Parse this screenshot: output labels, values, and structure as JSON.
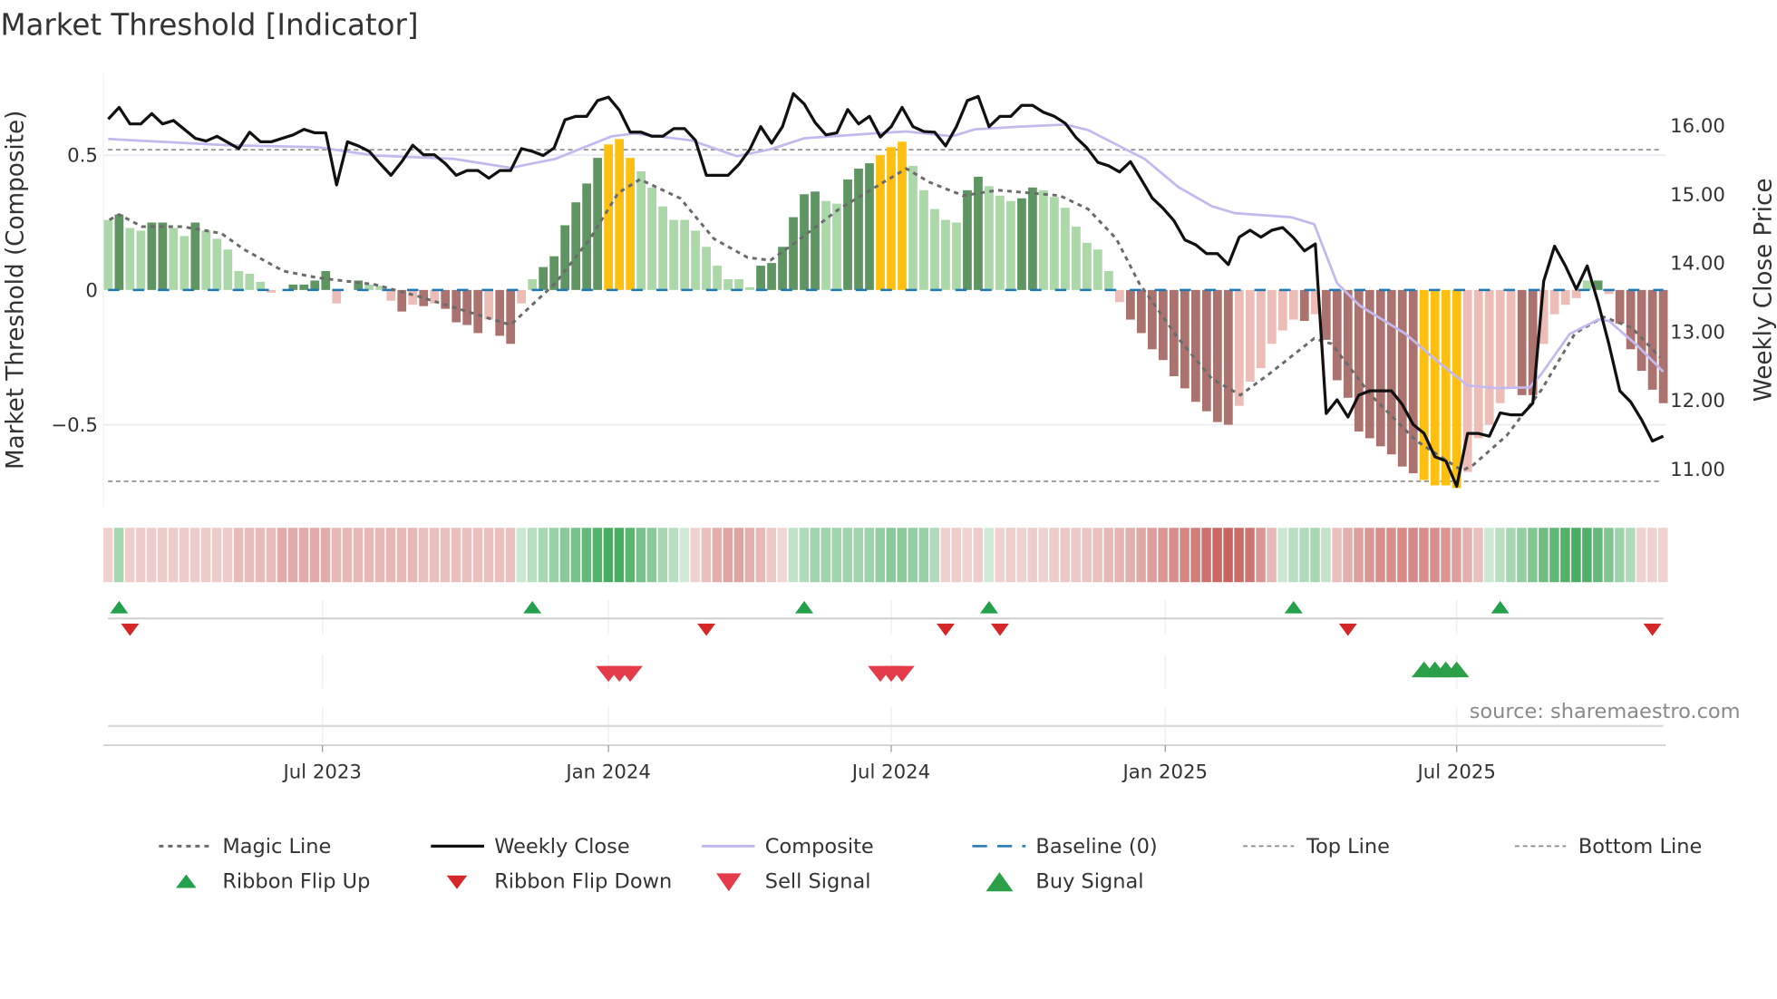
{
  "title": "Market Threshold [Indicator]",
  "source": "source: sharemaestro.com",
  "chart_data": {
    "type": "bar",
    "title": "Market Threshold [Indicator]",
    "left_axis": {
      "label": "Market Threshold (Composite)",
      "range": [
        -0.78,
        0.8
      ],
      "ticks": [
        {
          "value": 0.5,
          "label": "0.5"
        },
        {
          "value": 0,
          "label": "0"
        },
        {
          "value": -0.5,
          "label": "−0.5"
        }
      ]
    },
    "right_axis": {
      "label": "Weekly Close Price",
      "range": [
        10.6,
        16.8
      ],
      "ticks": [
        {
          "value": 16,
          "label": "16.00"
        },
        {
          "value": 15,
          "label": "15.00"
        },
        {
          "value": 14,
          "label": "14.00"
        },
        {
          "value": 13,
          "label": "13.00"
        },
        {
          "value": 12,
          "label": "12.00"
        },
        {
          "value": 11,
          "label": "11.00"
        }
      ]
    },
    "x_unit": "week index",
    "x_ticks": [
      {
        "week": 19.7,
        "label": "Jul 2023"
      },
      {
        "week": 46.0,
        "label": "Jan 2024"
      },
      {
        "week": 72.0,
        "label": "Jul 2024"
      },
      {
        "week": 97.2,
        "label": "Jan 2025"
      },
      {
        "week": 124.0,
        "label": "Jul 2025"
      }
    ],
    "top_line": 0.52,
    "bottom_line": -0.71,
    "baseline": 0,
    "threshold_bars": {
      "values": [
        0.26,
        0.28,
        0.23,
        0.22,
        0.25,
        0.25,
        0.23,
        0.2,
        0.25,
        0.22,
        0.19,
        0.15,
        0.07,
        0.06,
        0.03,
        -0.01,
        0,
        0.02,
        0.02,
        0.035,
        0.07,
        -0.05,
        0,
        0.035,
        0.02,
        0.015,
        -0.04,
        -0.08,
        -0.055,
        -0.06,
        -0.05,
        -0.07,
        -0.12,
        -0.13,
        -0.16,
        -0.11,
        -0.17,
        -0.2,
        -0.05,
        0.04,
        0.085,
        0.125,
        0.24,
        0.325,
        0.395,
        0.49,
        0.54,
        0.56,
        0.49,
        0.44,
        0.38,
        0.31,
        0.26,
        0.26,
        0.22,
        0.16,
        0.09,
        0.04,
        0.04,
        0.01,
        0.09,
        0.1,
        0.16,
        0.27,
        0.355,
        0.365,
        0.33,
        0.32,
        0.41,
        0.45,
        0.47,
        0.5,
        0.53,
        0.55,
        0.46,
        0.37,
        0.3,
        0.26,
        0.25,
        0.37,
        0.42,
        0.385,
        0.35,
        0.33,
        0.34,
        0.38,
        0.37,
        0.345,
        0.305,
        0.235,
        0.175,
        0.15,
        0.07,
        -0.045,
        -0.11,
        -0.16,
        -0.22,
        -0.26,
        -0.32,
        -0.365,
        -0.415,
        -0.45,
        -0.49,
        -0.5,
        -0.43,
        -0.34,
        -0.29,
        -0.2,
        -0.15,
        -0.11,
        -0.115,
        -0.09,
        -0.185,
        -0.335,
        -0.4,
        -0.525,
        -0.55,
        -0.58,
        -0.61,
        -0.655,
        -0.68,
        -0.705,
        -0.725,
        -0.725,
        -0.735,
        -0.675,
        -0.55,
        -0.5,
        -0.42,
        -0.36,
        -0.39,
        -0.39,
        -0.2,
        -0.09,
        -0.055,
        -0.03,
        0.035,
        0.035,
        -0.015,
        -0.125,
        -0.22,
        -0.3,
        -0.37,
        -0.42
      ],
      "state": "LDLLDDLLDLLLLLLPPDDDDPPDLLPRPRPRRRRPRRPLDDDDDDGGGLLLLLLLLLLLDDDDDDLLDDDGGGLLLLLDDLLLDDLLLLLLLPRRRRRRRRRRPPPPPPRPRRRRRRRRRGGGGPPPPPRRPPPPLDPRRRRR",
      "state_legend": {
        "D": "strong positive",
        "L": "weak positive",
        "G": "extreme",
        "R": "strong negative",
        "P": "weak negative"
      }
    },
    "weekly_close": [
      16.08,
      16.25,
      16.01,
      16.01,
      16.16,
      16.01,
      16.06,
      15.93,
      15.8,
      15.76,
      15.83,
      15.74,
      15.65,
      15.89,
      15.75,
      15.75,
      15.8,
      15.85,
      15.93,
      15.88,
      15.88,
      15.12,
      15.75,
      15.69,
      15.61,
      15.43,
      15.26,
      15.46,
      15.7,
      15.56,
      15.56,
      15.43,
      15.26,
      15.33,
      15.33,
      15.22,
      15.33,
      15.33,
      15.65,
      15.61,
      15.55,
      15.66,
      16.07,
      16.12,
      16.12,
      16.35,
      16.4,
      16.21,
      15.89,
      15.89,
      15.83,
      15.83,
      15.94,
      15.94,
      15.77,
      15.26,
      15.26,
      15.26,
      15.42,
      15.64,
      15.97,
      15.73,
      15.97,
      16.45,
      16.3,
      16.03,
      15.85,
      15.88,
      16.22,
      16.01,
      16.12,
      15.82,
      15.97,
      16.25,
      15.97,
      15.9,
      15.89,
      15.69,
      15.97,
      16.35,
      16.41,
      15.97,
      16.12,
      16.12,
      16.28,
      16.28,
      16.18,
      16.12,
      16.02,
      15.81,
      15.66,
      15.45,
      15.4,
      15.31,
      15.46,
      15.2,
      14.93,
      14.78,
      14.6,
      14.32,
      14.25,
      14.12,
      14.12,
      13.96,
      14.36,
      14.46,
      14.36,
      14.46,
      14.5,
      14.35,
      14.16,
      14.26,
      11.79,
      11.99,
      11.74,
      12.06,
      12.12,
      12.12,
      12.12,
      11.92,
      11.63,
      11.5,
      11.16,
      11.1,
      10.73,
      11.5,
      11.5,
      11.46,
      11.8,
      11.77,
      11.77,
      11.94,
      13.72,
      14.23,
      13.94,
      13.6,
      13.94,
      13.41,
      12.8,
      12.12,
      11.96,
      11.7,
      11.39,
      11.46
    ],
    "composite": [
      [
        0,
        15.79
      ],
      [
        10.9,
        15.7
      ],
      [
        19.3,
        15.67
      ],
      [
        24.5,
        15.55
      ],
      [
        31.8,
        15.5
      ],
      [
        37,
        15.37
      ],
      [
        41.1,
        15.5
      ],
      [
        46.3,
        15.83
      ],
      [
        48.4,
        15.87
      ],
      [
        53.6,
        15.77
      ],
      [
        57.8,
        15.54
      ],
      [
        60.9,
        15.64
      ],
      [
        64,
        15.8
      ],
      [
        70.3,
        15.87
      ],
      [
        73.4,
        15.9
      ],
      [
        77.6,
        15.83
      ],
      [
        79.7,
        15.93
      ],
      [
        83.8,
        15.97
      ],
      [
        88,
        16.0
      ],
      [
        90.1,
        15.92
      ],
      [
        93.2,
        15.67
      ],
      [
        95.3,
        15.5
      ],
      [
        98.4,
        15.09
      ],
      [
        101.5,
        14.81
      ],
      [
        103.6,
        14.71
      ],
      [
        108.8,
        14.65
      ],
      [
        110.9,
        14.55
      ],
      [
        113,
        13.69
      ],
      [
        115.1,
        13.36
      ],
      [
        119.3,
        12.95
      ],
      [
        122.4,
        12.53
      ],
      [
        125,
        12.2
      ],
      [
        127.6,
        12.16
      ],
      [
        130.7,
        12.17
      ],
      [
        131.8,
        12.37
      ],
      [
        134.4,
        12.95
      ],
      [
        137,
        13.16
      ],
      [
        138,
        13.14
      ],
      [
        140.6,
        12.78
      ],
      [
        143,
        12.4
      ]
    ],
    "magic_line": [
      [
        0.1,
        0.26
      ],
      [
        1,
        0.28
      ],
      [
        3.1,
        0.235
      ],
      [
        6.8,
        0.235
      ],
      [
        10.4,
        0.21
      ],
      [
        12.5,
        0.15
      ],
      [
        16.1,
        0.07
      ],
      [
        19.3,
        0.045
      ],
      [
        24.5,
        0.02
      ],
      [
        28.6,
        -0.025
      ],
      [
        33.8,
        -0.09
      ],
      [
        37,
        -0.13
      ],
      [
        41.1,
        0.025
      ],
      [
        44.3,
        0.19
      ],
      [
        46.9,
        0.36
      ],
      [
        48.9,
        0.41
      ],
      [
        52.6,
        0.34
      ],
      [
        55.7,
        0.19
      ],
      [
        58.8,
        0.12
      ],
      [
        60.9,
        0.11
      ],
      [
        63,
        0.17
      ],
      [
        67.2,
        0.3
      ],
      [
        71.3,
        0.4
      ],
      [
        73.4,
        0.45
      ],
      [
        75.5,
        0.4
      ],
      [
        78.6,
        0.35
      ],
      [
        81.8,
        0.37
      ],
      [
        87.5,
        0.35
      ],
      [
        90.1,
        0.3
      ],
      [
        92.7,
        0.19
      ],
      [
        94.8,
        0.025
      ],
      [
        98.4,
        -0.18
      ],
      [
        101.5,
        -0.33
      ],
      [
        104.1,
        -0.39
      ],
      [
        106.8,
        -0.31
      ],
      [
        110.9,
        -0.18
      ],
      [
        112.5,
        -0.2
      ],
      [
        116.1,
        -0.39
      ],
      [
        120.3,
        -0.56
      ],
      [
        124.5,
        -0.67
      ],
      [
        125.5,
        -0.65
      ],
      [
        128.6,
        -0.54
      ],
      [
        131.8,
        -0.37
      ],
      [
        134.9,
        -0.16
      ],
      [
        137.5,
        -0.1
      ],
      [
        140.1,
        -0.14
      ],
      [
        142.7,
        -0.25
      ]
    ],
    "ribbon": [
      -0.15,
      0.35,
      -0.18,
      -0.18,
      -0.18,
      -0.18,
      -0.18,
      -0.18,
      -0.18,
      -0.18,
      -0.18,
      -0.18,
      -0.28,
      -0.28,
      -0.28,
      -0.28,
      -0.38,
      -0.38,
      -0.38,
      -0.38,
      -0.38,
      -0.3,
      -0.3,
      -0.3,
      -0.3,
      -0.3,
      -0.3,
      -0.3,
      -0.3,
      -0.25,
      -0.25,
      -0.25,
      -0.25,
      -0.25,
      -0.25,
      -0.25,
      -0.25,
      -0.25,
      0.15,
      0.25,
      0.35,
      0.42,
      0.5,
      0.6,
      0.7,
      0.78,
      0.85,
      0.85,
      0.75,
      0.6,
      0.5,
      0.35,
      0.25,
      0.12,
      -0.15,
      -0.25,
      -0.35,
      -0.42,
      -0.42,
      -0.35,
      -0.3,
      -0.2,
      -0.12,
      0.2,
      0.3,
      0.38,
      0.38,
      0.38,
      0.38,
      0.38,
      0.4,
      0.45,
      0.5,
      0.5,
      0.45,
      0.42,
      0.3,
      -0.15,
      -0.18,
      -0.15,
      -0.18,
      0.12,
      -0.15,
      -0.18,
      -0.15,
      -0.18,
      -0.15,
      -0.18,
      -0.2,
      -0.2,
      -0.22,
      -0.25,
      -0.3,
      -0.32,
      -0.35,
      -0.4,
      -0.45,
      -0.5,
      -0.55,
      -0.6,
      -0.65,
      -0.72,
      -0.78,
      -0.8,
      -0.75,
      -0.7,
      -0.5,
      -0.3,
      0.15,
      0.25,
      0.3,
      0.35,
      0.2,
      -0.25,
      -0.35,
      -0.45,
      -0.5,
      -0.55,
      -0.55,
      -0.58,
      -0.58,
      -0.55,
      -0.55,
      -0.5,
      -0.45,
      -0.35,
      -0.25,
      0.15,
      0.25,
      0.35,
      0.45,
      0.55,
      0.65,
      0.72,
      0.8,
      0.85,
      0.8,
      0.7,
      0.55,
      0.4,
      0.3,
      -0.15,
      -0.15,
      -0.15
    ],
    "ribbon_flip_up": [
      1,
      39,
      64,
      81,
      109,
      128
    ],
    "ribbon_flip_down": [
      2,
      55,
      77,
      82,
      114,
      142
    ],
    "sell_signals": [
      46,
      47,
      48,
      71,
      72,
      73
    ],
    "buy_signals": [
      121,
      122,
      123,
      124
    ],
    "colors": {
      "bar_D": "#5f9562",
      "bar_L": "#acd8a9",
      "bar_G": "#fdc010",
      "bar_R": "#ab736f",
      "bar_P": "#ecbcb7",
      "close": "#111111",
      "composite": "#c4b9ee",
      "magic": "#6b6b6b",
      "baseline": "#1f77b4",
      "threshold_lines": "#8a8a8a",
      "ribbon_pos": "#3aa655",
      "ribbon_neg": "#c24f4a",
      "flip_up": "#23a04b",
      "flip_down": "#d62728",
      "sell": "#e33b4a",
      "buy": "#2ca048"
    },
    "legend": [
      {
        "label": "Magic Line",
        "symbol": "dotted-line"
      },
      {
        "label": "Weekly Close",
        "symbol": "solid-black-line"
      },
      {
        "label": "Composite",
        "symbol": "lavender-line"
      },
      {
        "label": "Baseline (0)",
        "symbol": "blue-dashed-line"
      },
      {
        "label": "Top Line",
        "symbol": "gray-dashed-line"
      },
      {
        "label": "Bottom Line",
        "symbol": "gray-dashed-line"
      },
      {
        "label": "Ribbon Flip Up",
        "symbol": "small-green-up-triangle"
      },
      {
        "label": "Ribbon Flip Down",
        "symbol": "small-red-down-triangle"
      },
      {
        "label": "Sell Signal",
        "symbol": "red-down-triangle"
      },
      {
        "label": "Buy Signal",
        "symbol": "green-up-triangle"
      }
    ]
  }
}
